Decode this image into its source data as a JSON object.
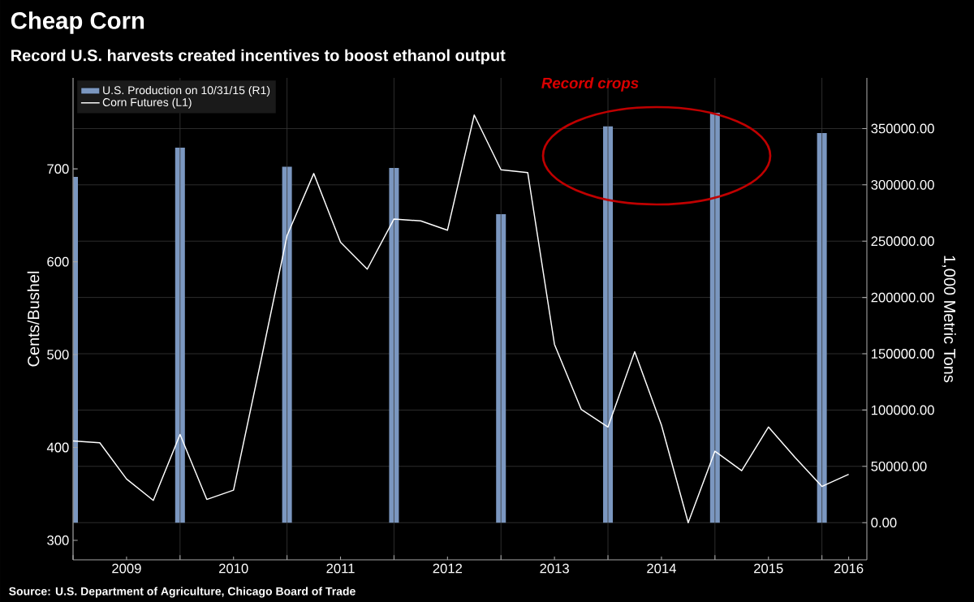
{
  "chart_data": {
    "type": "line",
    "title": "Cheap Corn",
    "subtitle": "Record U.S. harvests created incentives to boost ethanol output",
    "ylabel": "Cents/Bushel",
    "y2label": "1,000 Metric Tons",
    "annotations": [
      "Record crops",
      "Source: U.S. Department of Agriculture, Chicago Board of Trade"
    ],
    "x": [
      "2009-01",
      "2009-04",
      "2009-07",
      "2009-10",
      "2010-01",
      "2010-04",
      "2010-07",
      "2010-10",
      "2011-01",
      "2011-04",
      "2011-07",
      "2011-10",
      "2012-01",
      "2012-04",
      "2012-07",
      "2012-10",
      "2013-01",
      "2013-04",
      "2013-07",
      "2013-10",
      "2014-01",
      "2014-04",
      "2014-07",
      "2014-10",
      "2015-01",
      "2015-04",
      "2015-07",
      "2015-10",
      "2016-01",
      "2016-04"
    ],
    "series": [
      {
        "name": "U.S. Production on 10/31/15 (R1)",
        "type": "bar",
        "axis": "y2",
        "color": "#7b97c0",
        "x": [
          "2009-01",
          "2010-01",
          "2011-01",
          "2012-01",
          "2013-01",
          "2014-01",
          "2015-01",
          "2016-01"
        ],
        "values": [
          307000,
          333000,
          316000,
          315000,
          274000,
          352000,
          364000,
          346000
        ]
      },
      {
        "name": "Corn Futures (L1)",
        "color": "#ffffff",
        "values": [
          407,
          405,
          366,
          343,
          414,
          344,
          354,
          490,
          628,
          695,
          621,
          592,
          646,
          644,
          634,
          758,
          699,
          696,
          511,
          441,
          422,
          503,
          424,
          319,
          396,
          375,
          422,
          389,
          358,
          371
        ]
      }
    ],
    "xlim": [
      "2009-01",
      "2016-06"
    ],
    "xticks": [
      {
        "value": "2009-01",
        "label": null
      },
      {
        "value": "2010-01",
        "label": null
      },
      {
        "value": "2011-01",
        "label": null
      },
      {
        "value": "2012-01",
        "label": null
      },
      {
        "value": "2013-01",
        "label": null
      },
      {
        "value": "2014-01",
        "label": null
      },
      {
        "value": "2015-01",
        "label": null
      },
      {
        "value": "2016-01",
        "label": null
      },
      {
        "value": "2009-07",
        "label": "2009"
      },
      {
        "value": "2010-07",
        "label": "2010"
      },
      {
        "value": "2011-07",
        "label": "2011"
      },
      {
        "value": "2012-07",
        "label": "2012"
      },
      {
        "value": "2013-07",
        "label": "2013"
      },
      {
        "value": "2014-07",
        "label": "2014"
      },
      {
        "value": "2015-07",
        "label": "2015"
      },
      {
        "value": "2016-04",
        "label": "2016"
      }
    ],
    "ylim": [
      279,
      798
    ],
    "yticks": [
      300,
      400,
      500,
      600,
      700
    ],
    "y2lim": [
      -33000,
      395000
    ],
    "y2ticks": [
      {
        "value": 0,
        "label": "0.00"
      },
      {
        "value": 50000,
        "label": "50000.00"
      },
      {
        "value": 100000,
        "label": "100000.00"
      },
      {
        "value": 150000,
        "label": "150000.00"
      },
      {
        "value": 200000,
        "label": "200000.00"
      },
      {
        "value": 250000,
        "label": "250000.00"
      },
      {
        "value": 300000,
        "label": "300000.00"
      },
      {
        "value": 350000,
        "label": "350000.00"
      }
    ],
    "grid": true,
    "legend": "top left"
  }
}
